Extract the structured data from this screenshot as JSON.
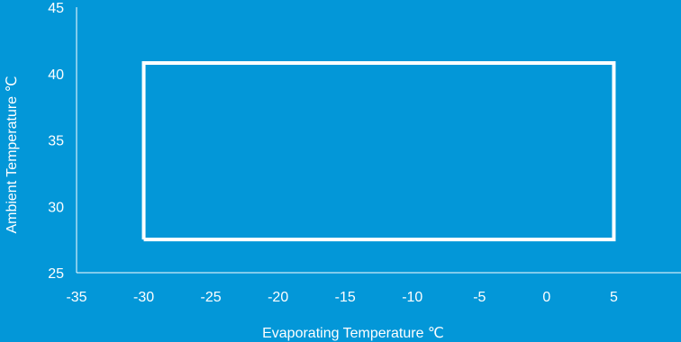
{
  "chart_data": {
    "type": "area",
    "title": "",
    "xlabel": "Evaporating Temperature ℃",
    "ylabel": "Ambient Temperature ℃",
    "xlim": [
      -35,
      10
    ],
    "ylim": [
      25,
      45
    ],
    "x_ticks": [
      -35,
      -30,
      -25,
      -20,
      -15,
      -10,
      -5,
      0,
      5
    ],
    "y_ticks": [
      25,
      30,
      35,
      40,
      45
    ],
    "grid": false,
    "legend": "none",
    "series": [
      {
        "shape": "rectangle",
        "x": [
          -30,
          5,
          5,
          -30,
          -30
        ],
        "y": [
          27.5,
          27.5,
          40.8,
          40.8,
          27.5
        ]
      }
    ]
  },
  "colors": {
    "background": "#0397d8",
    "foreground": "#ffffff"
  }
}
